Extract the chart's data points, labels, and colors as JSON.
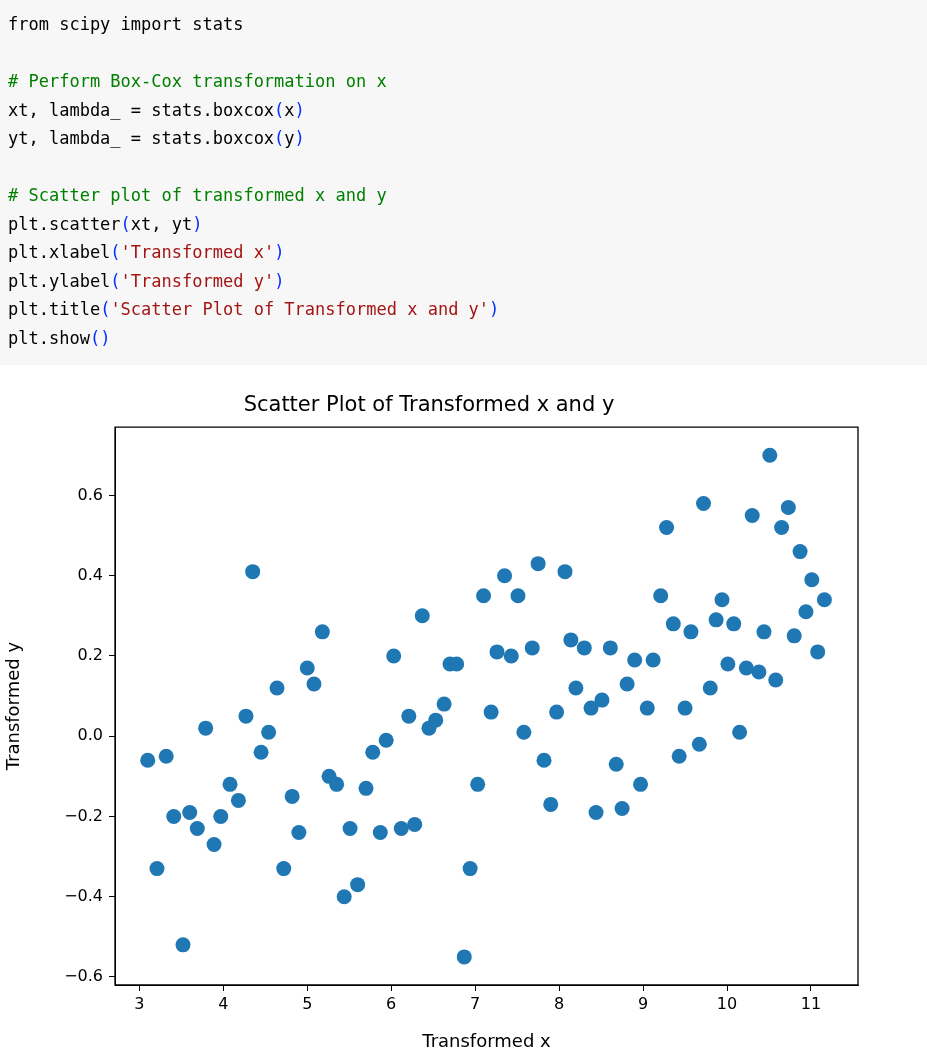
{
  "chart_data": {
    "type": "scatter",
    "title": "Scatter Plot of Transformed x and y",
    "xlabel": "Transformed x",
    "ylabel": "Transformed y",
    "annotations": [
      "from scipy import stats",
      "# Perform Box-Cox transformation on x",
      "xt, lambda_ = stats.boxcox(x)",
      "yt, lambda_ = stats.boxcox(y)",
      "# Scatter plot of transformed x and y",
      "plt.scatter(xt, yt)",
      "plt.xlabel('Transformed x')",
      "plt.ylabel('Transformed y')",
      "plt.title('Scatter Plot of Transformed x and y')",
      "plt.show()"
    ],
    "x": [
      3.1,
      3.21,
      3.32,
      3.41,
      3.52,
      3.6,
      3.69,
      3.79,
      3.89,
      3.97,
      4.08,
      4.18,
      4.27,
      4.35,
      4.45,
      4.54,
      4.64,
      4.72,
      4.82,
      4.9,
      5.0,
      5.08,
      5.18,
      5.26,
      5.35,
      5.44,
      5.51,
      5.6,
      5.7,
      5.78,
      5.87,
      5.94,
      6.03,
      6.12,
      6.21,
      6.28,
      6.37,
      6.45,
      6.53,
      6.63,
      6.7,
      6.78,
      6.87,
      6.94,
      7.03,
      7.1,
      7.19,
      7.26,
      7.35,
      7.43,
      7.51,
      7.58,
      7.68,
      7.75,
      7.82,
      7.9,
      7.97,
      8.07,
      8.14,
      8.2,
      8.3,
      8.38,
      8.44,
      8.51,
      8.61,
      8.68,
      8.75,
      8.81,
      8.9,
      8.97,
      9.05,
      9.12,
      9.21,
      9.28,
      9.36,
      9.43,
      9.5,
      9.57,
      9.67,
      9.72,
      9.8,
      9.87,
      9.94,
      10.01,
      10.08,
      10.15,
      10.23,
      10.3,
      10.38,
      10.44,
      10.51,
      10.58,
      10.65,
      10.73,
      10.8,
      10.87,
      10.94,
      11.01,
      11.08,
      11.16
    ],
    "series": [
      {
        "color": "#1f77b4",
        "values": [
          -0.06,
          -0.33,
          -0.05,
          -0.2,
          -0.52,
          -0.19,
          -0.23,
          0.02,
          -0.27,
          -0.2,
          -0.12,
          -0.16,
          0.05,
          0.41,
          -0.04,
          0.01,
          0.12,
          -0.33,
          -0.15,
          -0.24,
          0.17,
          0.13,
          0.26,
          -0.1,
          -0.12,
          -0.4,
          -0.23,
          -0.37,
          -0.13,
          -0.04,
          -0.24,
          -0.01,
          0.2,
          -0.23,
          0.05,
          -0.22,
          0.3,
          0.02,
          0.04,
          0.08,
          0.18,
          0.18,
          -0.55,
          -0.33,
          -0.12,
          0.35,
          0.06,
          0.21,
          0.4,
          0.2,
          0.35,
          0.01,
          0.22,
          0.43,
          -0.06,
          -0.17,
          0.06,
          0.41,
          0.24,
          0.12,
          0.22,
          0.07,
          -0.19,
          0.09,
          0.22,
          -0.07,
          -0.18,
          0.13,
          0.19,
          -0.12,
          0.07,
          0.19,
          0.35,
          0.52,
          0.28,
          -0.05,
          0.07,
          0.26,
          -0.02,
          0.58,
          0.12,
          0.29,
          0.34,
          0.18,
          0.28,
          0.01,
          0.17,
          0.55,
          0.16,
          0.26,
          0.7,
          0.14,
          0.52,
          0.57,
          0.25,
          0.46,
          0.31,
          0.39,
          0.21,
          0.34
        ]
      }
    ],
    "xlim": [
      2.71,
      11.56
    ],
    "ylim": [
      -0.62,
      0.77
    ],
    "xticks": [
      3,
      4,
      5,
      6,
      7,
      8,
      9,
      10,
      11
    ],
    "yticks": [
      {
        "value": -0.6,
        "label": "−0.6"
      },
      {
        "value": -0.4,
        "label": "−0.4"
      },
      {
        "value": -0.2,
        "label": "−0.2"
      },
      {
        "value": 0,
        "label": "0.0"
      },
      {
        "value": 0.2,
        "label": "0.2"
      },
      {
        "value": 0.4,
        "label": "0.4"
      },
      {
        "value": 0.6,
        "label": "0.6"
      }
    ],
    "marker": "circle",
    "grid": false,
    "legend": false
  }
}
